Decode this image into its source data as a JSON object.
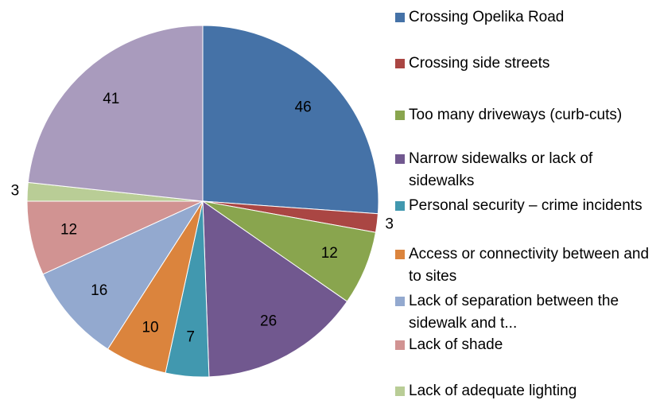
{
  "chart_data": {
    "type": "pie",
    "categories": [
      "Crossing Opelika Road",
      "Crossing side streets",
      "Too many driveways (curb-cuts)",
      "Narrow sidewalks or lack of sidewalks",
      "Personal security – crime incidents",
      "Access or connectivity between and to sites",
      "Lack of separation between the sidewalk and t...",
      "Lack of shade",
      "Lack of adequate lighting",
      null
    ],
    "values": [
      46,
      3,
      12,
      26,
      7,
      10,
      16,
      12,
      3,
      41
    ],
    "colors": [
      "#4572a7",
      "#aa4643",
      "#89a54e",
      "#71588f",
      "#4198af",
      "#db843d",
      "#93a9cf",
      "#d19392",
      "#b9cd96",
      "#a99bbd"
    ],
    "legend": "right"
  }
}
